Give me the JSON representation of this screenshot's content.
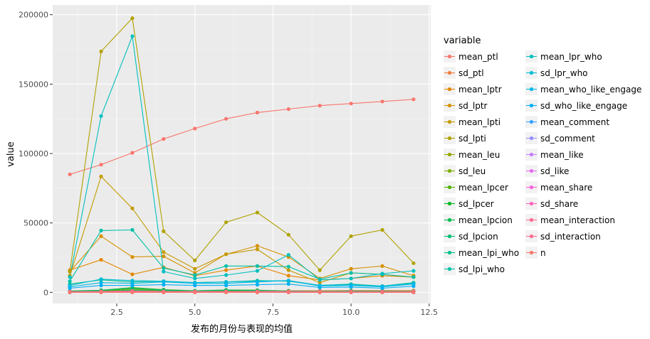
{
  "chart_data": {
    "type": "line",
    "title": "",
    "xlabel": "发布的月份与表现的均值",
    "ylabel": "value",
    "xlim": [
      0.45,
      12.55
    ],
    "ylim": [
      -8000,
      207000
    ],
    "x_ticks": [
      2.5,
      5.0,
      7.5,
      10.0,
      12.5
    ],
    "x_tick_labels": [
      "2.5",
      "5.0",
      "7.5",
      "10.0",
      "12.5"
    ],
    "y_ticks": [
      0,
      50000,
      100000,
      150000,
      200000
    ],
    "y_tick_labels": [
      "0",
      "50000",
      "100000",
      "150000",
      "200000"
    ],
    "grid": true,
    "legend": {
      "title": "variable",
      "position": "right",
      "columns": 2
    },
    "x": [
      1,
      2,
      3,
      4,
      5,
      6,
      7,
      8,
      9,
      10,
      11,
      12
    ],
    "series": [
      {
        "name": "mean_ptl",
        "color": "#F8766D",
        "values": [
          85000,
          92000,
          100500,
          110500,
          118000,
          125000,
          129500,
          132000,
          134500,
          136000,
          137500,
          139000
        ]
      },
      {
        "name": "sd_ptl",
        "color": "#F07D40",
        "values": [
          800,
          900,
          1000,
          1000,
          1100,
          1100,
          1200,
          1200,
          1200,
          1300,
          1300,
          1300
        ]
      },
      {
        "name": "mean_lptr",
        "color": "#E58700",
        "values": [
          16000,
          23500,
          13000,
          18000,
          12000,
          16000,
          19000,
          12000,
          9000,
          10000,
          12000,
          11000
        ]
      },
      {
        "name": "sd_lptr",
        "color": "#D69100",
        "values": [
          15000,
          40500,
          25500,
          26000,
          14000,
          27500,
          33500,
          25500,
          10000,
          17000,
          19000,
          12000
        ]
      },
      {
        "name": "mean_lpti",
        "color": "#C49A00",
        "values": [
          12000,
          83500,
          60500,
          29000,
          17000,
          27500,
          31000,
          16000,
          7000,
          14000,
          13000,
          11000
        ]
      },
      {
        "name": "sd_lpti",
        "color": "#B0A200",
        "values": [
          15000,
          173500,
          197500,
          44000,
          23000,
          50500,
          57500,
          41500,
          16000,
          40500,
          45000,
          21000
        ]
      },
      {
        "name": "mean_leu",
        "color": "#99A800",
        "values": [
          500,
          800,
          2500,
          1000,
          600,
          800,
          700,
          500,
          400,
          500,
          500,
          400
        ]
      },
      {
        "name": "sd_leu",
        "color": "#7CAE00",
        "values": [
          1000,
          1500,
          3500,
          2000,
          1200,
          1800,
          1600,
          1000,
          800,
          1000,
          900,
          800
        ]
      },
      {
        "name": "mean_lpcer",
        "color": "#53B400",
        "values": [
          300,
          600,
          1500,
          800,
          400,
          600,
          500,
          300,
          300,
          300,
          300,
          300
        ]
      },
      {
        "name": "sd_lpcer",
        "color": "#00B81F",
        "values": [
          700,
          1200,
          3000,
          1500,
          900,
          1300,
          1200,
          800,
          600,
          700,
          700,
          600
        ]
      },
      {
        "name": "mean_lpcion",
        "color": "#00BB4E",
        "values": [
          400,
          700,
          1800,
          900,
          500,
          700,
          600,
          400,
          300,
          400,
          400,
          300
        ]
      },
      {
        "name": "sd_lpcion",
        "color": "#00BE70",
        "values": [
          900,
          1500,
          3200,
          1800,
          1100,
          1600,
          1400,
          900,
          700,
          900,
          800,
          700
        ]
      },
      {
        "name": "mean_lpi_who",
        "color": "#00C08D",
        "values": [
          6000,
          9000,
          7500,
          8000,
          7000,
          7500,
          8500,
          8000,
          5000,
          6000,
          4500,
          7000
        ]
      },
      {
        "name": "sd_lpi_who",
        "color": "#00C1A7",
        "values": [
          8000,
          44500,
          45000,
          17500,
          12500,
          19000,
          19000,
          18500,
          9500,
          14000,
          13000,
          11000
        ]
      },
      {
        "name": "mean_lpr_who",
        "color": "#00C0BF",
        "values": [
          11000,
          127000,
          184500,
          15000,
          10000,
          12500,
          15500,
          27000,
          9000,
          10000,
          13500,
          15500
        ]
      },
      {
        "name": "sd_lpr_who",
        "color": "#00BDD4",
        "values": [
          5000,
          9500,
          8500,
          8000,
          7000,
          7500,
          8000,
          8500,
          5000,
          5500,
          4500,
          6500
        ]
      },
      {
        "name": "mean_who_like_engage",
        "color": "#00B8E5",
        "values": [
          4000,
          7000,
          6500,
          7500,
          6500,
          6500,
          7500,
          8500,
          4500,
          5000,
          4000,
          6000
        ]
      },
      {
        "name": "sd_who_like_engage",
        "color": "#00B0F6",
        "values": [
          3000,
          5000,
          5000,
          5500,
          5000,
          5000,
          5500,
          6000,
          3500,
          3800,
          3000,
          4500
        ]
      },
      {
        "name": "mean_comment",
        "color": "#35A2FF",
        "values": [
          100,
          150,
          200,
          150,
          120,
          130,
          140,
          120,
          100,
          100,
          100,
          100
        ]
      },
      {
        "name": "sd_comment",
        "color": "#9590FF",
        "values": [
          200,
          300,
          400,
          300,
          250,
          260,
          280,
          240,
          200,
          200,
          200,
          200
        ]
      },
      {
        "name": "mean_like",
        "color": "#C77CFF",
        "values": [
          150,
          200,
          300,
          200,
          180,
          190,
          200,
          170,
          150,
          150,
          150,
          150
        ]
      },
      {
        "name": "sd_like",
        "color": "#E76BF3",
        "values": [
          250,
          350,
          500,
          350,
          300,
          320,
          340,
          300,
          250,
          250,
          250,
          250
        ]
      },
      {
        "name": "mean_share",
        "color": "#FA62DB",
        "values": [
          50,
          80,
          120,
          80,
          60,
          70,
          70,
          60,
          50,
          50,
          50,
          50
        ]
      },
      {
        "name": "sd_share",
        "color": "#FF62BC",
        "values": [
          100,
          150,
          220,
          150,
          120,
          130,
          130,
          110,
          100,
          100,
          100,
          100
        ]
      },
      {
        "name": "mean_interaction",
        "color": "#FF6C91",
        "values": [
          300,
          400,
          600,
          400,
          350,
          380,
          400,
          350,
          300,
          300,
          300,
          300
        ]
      },
      {
        "name": "sd_interaction",
        "color": "#FF6C91",
        "values": [
          500,
          700,
          1000,
          700,
          600,
          650,
          700,
          600,
          500,
          500,
          500,
          500
        ]
      },
      {
        "name": "n",
        "color": "#F8766D",
        "values": [
          10,
          10,
          10,
          10,
          10,
          10,
          10,
          10,
          10,
          10,
          10,
          10
        ]
      }
    ]
  }
}
